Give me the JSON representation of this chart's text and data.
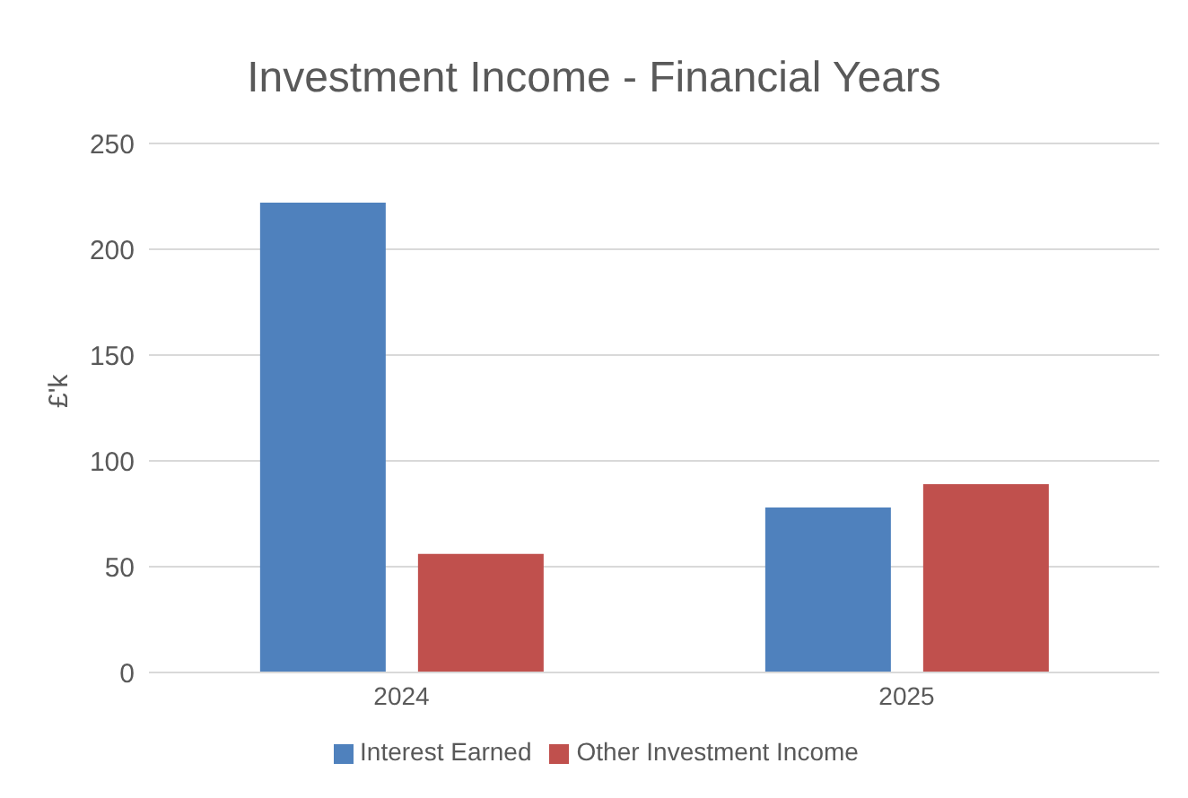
{
  "chart_data": {
    "type": "bar",
    "title": "Investment Income - Financial Years",
    "ylabel": "£'k",
    "categories": [
      "2024",
      "2025"
    ],
    "series": [
      {
        "name": "Interest Earned",
        "color": "#4f81bd",
        "values": [
          222,
          78
        ]
      },
      {
        "name": "Other Investment Income",
        "color": "#c0504d",
        "values": [
          56,
          89
        ]
      }
    ],
    "ylim": [
      0,
      250
    ],
    "yticks": [
      0,
      50,
      100,
      150,
      200,
      250
    ],
    "grid": "y",
    "legend": "bottom"
  }
}
